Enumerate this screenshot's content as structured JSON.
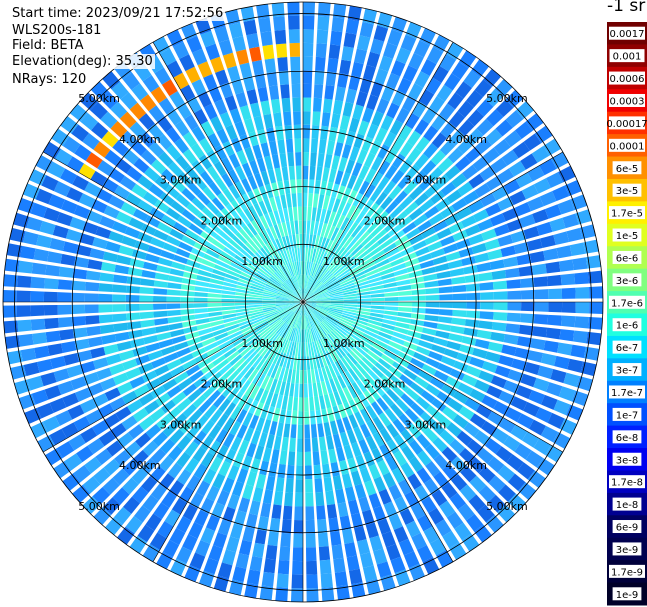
{
  "header": {
    "start_time": "Start time: 2023/09/21 17:52:56",
    "instrument": "WLS200s-181",
    "field": "Field: BETA",
    "elevation": "Elevation(deg): 35.30",
    "nrays": "NRays: 120"
  },
  "colorbar": {
    "unit_label": "-1 sr",
    "labels": [
      "0.0017",
      "0.001",
      "0.0006",
      "0.0003",
      "0.00017",
      "0.0001",
      "6e-5",
      "3e-5",
      "1.7e-5",
      "1e-5",
      "6e-6",
      "3e-6",
      "1.7e-6",
      "1e-6",
      "6e-7",
      "3e-7",
      "1.7e-7",
      "1e-7",
      "6e-8",
      "3e-8",
      "1.7e-8",
      "1e-8",
      "6e-9",
      "3e-9",
      "1.7e-9",
      "1e-9"
    ],
    "colors": [
      "#700000",
      "#8f0000",
      "#c00000",
      "#f00000",
      "#ff3000",
      "#ff6000",
      "#ff9000",
      "#ffc000",
      "#fff000",
      "#e0ff20",
      "#b0ff50",
      "#80ff80",
      "#50ffb0",
      "#20ffe0",
      "#00e0ff",
      "#00b0ff",
      "#0080ff",
      "#0050ff",
      "#0020ff",
      "#0000f0",
      "#0000c0",
      "#000090",
      "#000060",
      "#00004f",
      "#00003a",
      "#000028"
    ]
  },
  "chart_data": {
    "type": "heatmap",
    "projection": "polar (PPI scan)",
    "quantity": "BETA",
    "nrays": 120,
    "elevation_deg": 35.3,
    "range_rings": [
      {
        "value": 1,
        "label": "1.00km"
      },
      {
        "value": 2,
        "label": "2.00km"
      },
      {
        "value": 3,
        "label": "3.00km"
      },
      {
        "value": 4,
        "label": "4.00km"
      },
      {
        "value": 5,
        "label": "5.00km"
      }
    ],
    "max_range_km": 5.2,
    "spoke_count": 12,
    "background_levels_by_range": [
      {
        "range_km": [
          0.0,
          2.2
        ],
        "level": "1e-7 to 1.7e-7"
      },
      {
        "range_km": [
          2.2,
          3.6
        ],
        "level": "6e-8 to 1e-7"
      },
      {
        "range_km": [
          3.6,
          5.2
        ],
        "level": "1.7e-8 to 6e-8"
      }
    ],
    "feature": {
      "azimuth_deg": [
        -60,
        0
      ],
      "range_km": [
        4.3,
        4.6
      ],
      "level": "1e-5 to 1.7e-5"
    }
  }
}
